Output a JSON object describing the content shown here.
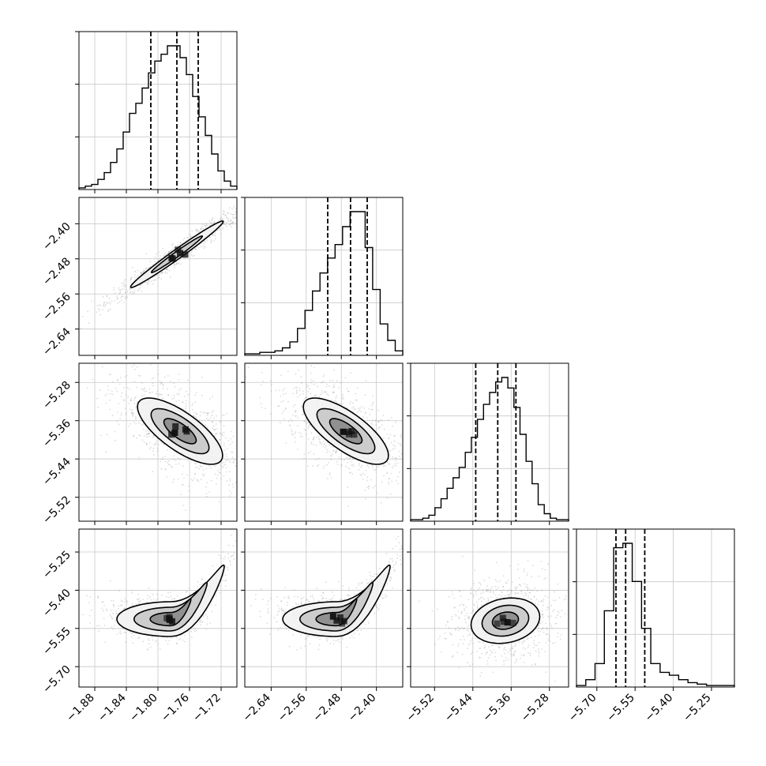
{
  "chart_data": {
    "type": "corner",
    "grid": true,
    "parameters": [
      {
        "xlim": [
          -1.9,
          -1.7
        ],
        "xticks": [
          "−1.88",
          "−1.84",
          "−1.80",
          "−1.76",
          "−1.72"
        ],
        "xtick_values": [
          -1.88,
          -1.84,
          -1.8,
          -1.76,
          -1.72
        ],
        "quantiles": [
          -1.809,
          -1.776,
          -1.749
        ]
      },
      {
        "xlim": [
          -2.7,
          -2.34
        ],
        "xticks": [
          "−2.64",
          "−2.56",
          "−2.48",
          "−2.40"
        ],
        "xtick_values": [
          -2.64,
          -2.56,
          -2.48,
          -2.4
        ],
        "yticks": [
          "−2.40",
          "−2.48",
          "−2.56",
          "−2.64"
        ],
        "ytick_values": [
          -2.4,
          -2.48,
          -2.56,
          -2.64
        ],
        "quantiles": [
          -2.511,
          -2.459,
          -2.421
        ]
      },
      {
        "xlim": [
          -5.57,
          -5.24
        ],
        "xticks": [
          "−5.52",
          "−5.44",
          "−5.36",
          "−5.28"
        ],
        "xtick_values": [
          -5.52,
          -5.44,
          -5.36,
          -5.28
        ],
        "yticks": [
          "−5.28",
          "−5.36",
          "−5.44",
          "−5.52"
        ],
        "ytick_values": [
          -5.28,
          -5.36,
          -5.44,
          -5.52
        ],
        "quantiles": [
          -5.434,
          -5.388,
          -5.35
        ]
      },
      {
        "xlim": [
          -5.78,
          -5.16
        ],
        "xticks": [
          "−5.70",
          "−5.55",
          "−5.40",
          "−5.25"
        ],
        "xtick_values": [
          -5.7,
          -5.55,
          -5.4,
          -5.25
        ],
        "yticks": [
          "−5.25",
          "−5.40",
          "−5.55",
          "−5.70"
        ],
        "ytick_values": [
          -5.25,
          -5.4,
          -5.55,
          -5.7
        ],
        "quantiles": [
          -5.625,
          -5.587,
          -5.512
        ]
      }
    ],
    "histograms": [
      [
        1,
        2,
        3,
        6,
        10,
        16,
        24,
        34,
        45,
        51,
        60,
        69,
        76,
        80,
        85,
        85,
        78,
        68,
        55,
        43,
        32,
        21,
        11,
        5,
        2
      ],
      [
        1,
        1,
        2,
        2,
        3,
        5,
        9,
        18,
        30,
        43,
        55,
        65,
        74,
        86,
        96,
        96,
        72,
        44,
        21,
        10,
        3
      ],
      [
        1,
        1,
        2,
        4,
        9,
        15,
        22,
        29,
        36,
        46,
        56,
        68,
        78,
        86,
        93,
        96,
        89,
        76,
        58,
        40,
        25,
        11,
        5,
        2,
        1,
        1
      ],
      [
        1,
        5,
        16,
        52,
        95,
        98,
        72,
        40,
        16,
        10,
        8,
        5,
        3,
        2,
        1,
        1,
        1
      ]
    ]
  }
}
